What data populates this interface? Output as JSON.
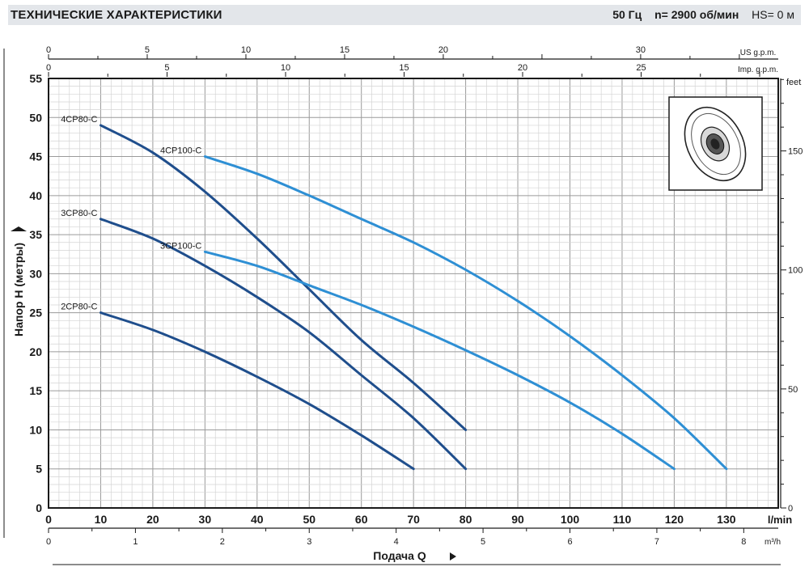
{
  "header": {
    "title": "ТЕХНИЧЕСКИЕ ХАРАКТЕРИСТИКИ",
    "frequency": "50 Гц",
    "speed": "n= 2900  об/мин",
    "suction": "HS= 0 м"
  },
  "chart_data": {
    "type": "line",
    "xlabel": "Подача Q",
    "ylabel": "Напор H (метры)",
    "x_unit": "l/min",
    "y_unit_right": "feet",
    "x_unit_m3h": "m³/h",
    "x_unit_usgpm": "US g.p.m.",
    "x_unit_impgpm": "Imp. g.p.m.",
    "xlim": [
      0,
      140
    ],
    "ylim": [
      0,
      55
    ],
    "x_ticks": [
      "0",
      "10",
      "20",
      "30",
      "40",
      "50",
      "60",
      "70",
      "80",
      "90",
      "100",
      "110",
      "120",
      "130"
    ],
    "y_ticks": [
      "0",
      "5",
      "10",
      "15",
      "20",
      "25",
      "30",
      "35",
      "40",
      "45",
      "50",
      "55"
    ],
    "feet_ticks": [
      "0",
      "50",
      "100",
      "150"
    ],
    "m3h_ticks": [
      "0",
      "1",
      "2",
      "3",
      "4",
      "5",
      "6",
      "7",
      "8"
    ],
    "usgpm_ticks": [
      "0",
      "5",
      "10",
      "15",
      "20",
      "30"
    ],
    "impgpm_ticks": [
      "0",
      "5",
      "10",
      "15",
      "20",
      "25"
    ],
    "grid": true,
    "series": [
      {
        "name": "4CP80-C",
        "color": "#1f4e8c",
        "x": [
          10,
          20,
          30,
          40,
          50,
          60,
          70,
          80
        ],
        "y": [
          49,
          45.5,
          40.5,
          34.5,
          28,
          21.5,
          16,
          10
        ]
      },
      {
        "name": "3CP80-C",
        "color": "#1f4e8c",
        "x": [
          10,
          20,
          30,
          40,
          50,
          60,
          70,
          80
        ],
        "y": [
          37,
          34.5,
          31,
          27,
          22.5,
          17,
          11.5,
          5
        ]
      },
      {
        "name": "2CP80-C",
        "color": "#1f4e8c",
        "x": [
          10,
          20,
          30,
          40,
          50,
          60,
          70
        ],
        "y": [
          25,
          22.8,
          20,
          16.8,
          13.3,
          9.3,
          5
        ]
      },
      {
        "name": "4CP100-C",
        "color": "#2e8fd4",
        "x": [
          30,
          40,
          50,
          60,
          70,
          80,
          90,
          100,
          110,
          120,
          130
        ],
        "y": [
          45,
          42.8,
          40,
          37,
          34,
          30.5,
          26.5,
          22,
          17,
          11.5,
          5
        ]
      },
      {
        "name": "3CP100-C",
        "color": "#2e8fd4",
        "x": [
          30,
          40,
          50,
          60,
          70,
          80,
          90,
          100,
          110,
          120
        ],
        "y": [
          32.8,
          31,
          28.5,
          26,
          23.2,
          20.2,
          17,
          13.5,
          9.5,
          5
        ]
      }
    ]
  },
  "inset": {
    "icon": "impeller-icon"
  }
}
